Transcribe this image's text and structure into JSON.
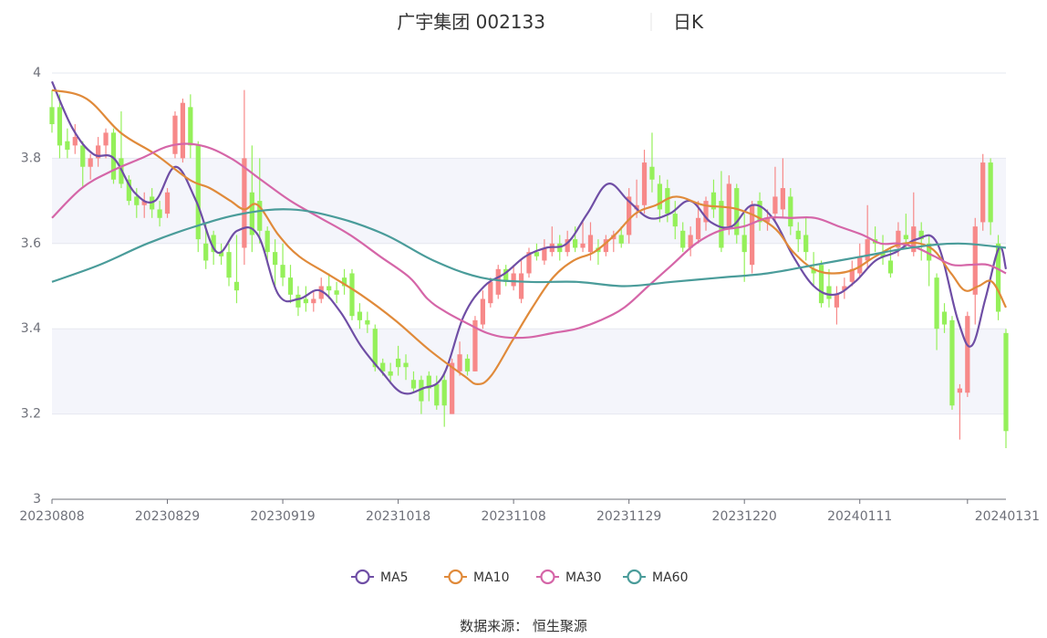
{
  "chart_data": {
    "type": "candlestick",
    "title": "广宇集团 002133",
    "subtitle": "日K",
    "source": "数据来源： 恒生聚源",
    "colors": {
      "up": "#f78989",
      "down": "#95f05a"
    },
    "ylim": [
      3,
      4
    ],
    "yticks": [
      "3",
      "3.2",
      "3.4",
      "3.6",
      "3.8",
      "4"
    ],
    "yticks_values": [
      3,
      3.2,
      3.4,
      3.6,
      3.8,
      4
    ],
    "xticks": [
      "20230808",
      "20230829",
      "20230919",
      "20231018",
      "20231108",
      "20231129",
      "20231220",
      "20240111",
      "20240131"
    ],
    "xtick_index": [
      0,
      15,
      30,
      45,
      60,
      75,
      90,
      105,
      119
    ],
    "candles": [
      [
        3.92,
        3.88,
        3.96,
        3.86
      ],
      [
        3.92,
        3.83,
        3.95,
        3.8
      ],
      [
        3.84,
        3.82,
        3.87,
        3.8
      ],
      [
        3.83,
        3.85,
        3.88,
        3.81
      ],
      [
        3.83,
        3.78,
        3.84,
        3.73
      ],
      [
        3.78,
        3.8,
        3.81,
        3.75
      ],
      [
        3.8,
        3.83,
        3.85,
        3.78
      ],
      [
        3.83,
        3.86,
        3.87,
        3.8
      ],
      [
        3.86,
        3.75,
        3.87,
        3.74
      ],
      [
        3.8,
        3.74,
        3.91,
        3.73
      ],
      [
        3.75,
        3.7,
        3.76,
        3.69
      ],
      [
        3.71,
        3.69,
        3.73,
        3.66
      ],
      [
        3.69,
        3.7,
        3.72,
        3.66
      ],
      [
        3.71,
        3.68,
        3.73,
        3.66
      ],
      [
        3.68,
        3.66,
        3.7,
        3.64
      ],
      [
        3.67,
        3.72,
        3.73,
        3.66
      ],
      [
        3.81,
        3.9,
        3.91,
        3.8
      ],
      [
        3.8,
        3.93,
        3.94,
        3.79
      ],
      [
        3.92,
        3.83,
        3.95,
        3.8
      ],
      [
        3.83,
        3.61,
        3.84,
        3.58
      ],
      [
        3.6,
        3.56,
        3.65,
        3.54
      ],
      [
        3.62,
        3.58,
        3.63,
        3.55
      ],
      [
        3.58,
        3.57,
        3.6,
        3.55
      ],
      [
        3.58,
        3.52,
        3.6,
        3.5
      ],
      [
        3.51,
        3.49,
        3.62,
        3.46
      ],
      [
        3.59,
        3.8,
        3.96,
        3.55
      ],
      [
        3.72,
        3.62,
        3.83,
        3.58
      ],
      [
        3.7,
        3.63,
        3.8,
        3.6
      ],
      [
        3.63,
        3.58,
        3.64,
        3.55
      ],
      [
        3.58,
        3.55,
        3.61,
        3.5
      ],
      [
        3.55,
        3.52,
        3.6,
        3.5
      ],
      [
        3.52,
        3.48,
        3.55,
        3.46
      ],
      [
        3.48,
        3.45,
        3.5,
        3.43
      ],
      [
        3.47,
        3.46,
        3.5,
        3.44
      ],
      [
        3.46,
        3.47,
        3.49,
        3.44
      ],
      [
        3.47,
        3.5,
        3.52,
        3.46
      ],
      [
        3.5,
        3.49,
        3.53,
        3.47
      ],
      [
        3.49,
        3.48,
        3.51,
        3.46
      ],
      [
        3.52,
        3.5,
        3.54,
        3.48
      ],
      [
        3.53,
        3.43,
        3.54,
        3.42
      ],
      [
        3.44,
        3.42,
        3.46,
        3.4
      ],
      [
        3.42,
        3.41,
        3.44,
        3.39
      ],
      [
        3.4,
        3.31,
        3.41,
        3.3
      ],
      [
        3.32,
        3.3,
        3.33,
        3.29
      ],
      [
        3.3,
        3.29,
        3.32,
        3.27
      ],
      [
        3.33,
        3.31,
        3.36,
        3.29
      ],
      [
        3.32,
        3.31,
        3.34,
        3.28
      ],
      [
        3.28,
        3.26,
        3.3,
        3.25
      ],
      [
        3.28,
        3.23,
        3.29,
        3.2
      ],
      [
        3.29,
        3.26,
        3.3,
        3.23
      ],
      [
        3.27,
        3.22,
        3.29,
        3.21
      ],
      [
        3.28,
        3.22,
        3.3,
        3.17
      ],
      [
        3.2,
        3.32,
        3.33,
        3.2
      ],
      [
        3.3,
        3.34,
        3.37,
        3.29
      ],
      [
        3.33,
        3.3,
        3.34,
        3.29
      ],
      [
        3.3,
        3.42,
        3.43,
        3.3
      ],
      [
        3.41,
        3.47,
        3.49,
        3.4
      ],
      [
        3.46,
        3.51,
        3.52,
        3.45
      ],
      [
        3.48,
        3.54,
        3.55,
        3.47
      ],
      [
        3.54,
        3.51,
        3.55,
        3.5
      ],
      [
        3.5,
        3.53,
        3.55,
        3.49
      ],
      [
        3.47,
        3.53,
        3.56,
        3.46
      ],
      [
        3.53,
        3.58,
        3.59,
        3.52
      ],
      [
        3.58,
        3.57,
        3.6,
        3.56
      ],
      [
        3.56,
        3.59,
        3.61,
        3.55
      ],
      [
        3.58,
        3.6,
        3.64,
        3.57
      ],
      [
        3.6,
        3.58,
        3.62,
        3.56
      ],
      [
        3.58,
        3.61,
        3.63,
        3.57
      ],
      [
        3.61,
        3.59,
        3.64,
        3.58
      ],
      [
        3.59,
        3.6,
        3.65,
        3.58
      ],
      [
        3.58,
        3.62,
        3.65,
        3.56
      ],
      [
        3.59,
        3.58,
        3.61,
        3.55
      ],
      [
        3.58,
        3.61,
        3.62,
        3.57
      ],
      [
        3.61,
        3.62,
        3.63,
        3.58
      ],
      [
        3.62,
        3.6,
        3.64,
        3.59
      ],
      [
        3.62,
        3.71,
        3.73,
        3.6
      ],
      [
        3.68,
        3.69,
        3.75,
        3.66
      ],
      [
        3.69,
        3.79,
        3.82,
        3.67
      ],
      [
        3.78,
        3.75,
        3.86,
        3.72
      ],
      [
        3.74,
        3.68,
        3.76,
        3.65
      ],
      [
        3.73,
        3.67,
        3.75,
        3.65
      ],
      [
        3.67,
        3.64,
        3.7,
        3.61
      ],
      [
        3.63,
        3.59,
        3.65,
        3.58
      ],
      [
        3.59,
        3.62,
        3.64,
        3.57
      ],
      [
        3.61,
        3.66,
        3.7,
        3.6
      ],
      [
        3.65,
        3.7,
        3.71,
        3.63
      ],
      [
        3.72,
        3.68,
        3.75,
        3.66
      ],
      [
        3.7,
        3.59,
        3.77,
        3.58
      ],
      [
        3.64,
        3.74,
        3.76,
        3.62
      ],
      [
        3.73,
        3.62,
        3.74,
        3.6
      ],
      [
        3.62,
        3.58,
        3.67,
        3.51
      ],
      [
        3.55,
        3.69,
        3.7,
        3.53
      ],
      [
        3.7,
        3.65,
        3.72,
        3.63
      ],
      [
        3.65,
        3.66,
        3.68,
        3.63
      ],
      [
        3.67,
        3.71,
        3.78,
        3.65
      ],
      [
        3.68,
        3.73,
        3.8,
        3.66
      ],
      [
        3.71,
        3.64,
        3.73,
        3.62
      ],
      [
        3.63,
        3.61,
        3.65,
        3.58
      ],
      [
        3.62,
        3.58,
        3.66,
        3.56
      ],
      [
        3.54,
        3.53,
        3.58,
        3.5
      ],
      [
        3.55,
        3.46,
        3.56,
        3.45
      ],
      [
        3.5,
        3.47,
        3.54,
        3.45
      ],
      [
        3.45,
        3.48,
        3.5,
        3.41
      ],
      [
        3.49,
        3.5,
        3.52,
        3.47
      ],
      [
        3.51,
        3.54,
        3.56,
        3.5
      ],
      [
        3.53,
        3.57,
        3.6,
        3.52
      ],
      [
        3.56,
        3.61,
        3.69,
        3.54
      ],
      [
        3.61,
        3.6,
        3.64,
        3.58
      ],
      [
        3.58,
        3.57,
        3.62,
        3.55
      ],
      [
        3.56,
        3.53,
        3.59,
        3.52
      ],
      [
        3.59,
        3.63,
        3.65,
        3.57
      ],
      [
        3.62,
        3.61,
        3.67,
        3.59
      ],
      [
        3.58,
        3.64,
        3.72,
        3.57
      ],
      [
        3.63,
        3.61,
        3.65,
        3.56
      ],
      [
        3.6,
        3.56,
        3.62,
        3.5
      ],
      [
        3.52,
        3.4,
        3.53,
        3.35
      ],
      [
        3.44,
        3.41,
        3.46,
        3.39
      ],
      [
        3.42,
        3.22,
        3.43,
        3.21
      ],
      [
        3.25,
        3.26,
        3.27,
        3.14
      ],
      [
        3.25,
        3.43,
        3.44,
        3.24
      ],
      [
        3.48,
        3.64,
        3.66,
        3.41
      ],
      [
        3.65,
        3.79,
        3.81,
        3.63
      ],
      [
        3.79,
        3.65,
        3.8,
        3.62
      ],
      [
        3.6,
        3.44,
        3.62,
        3.42
      ],
      [
        3.39,
        3.16,
        3.4,
        3.12
      ]
    ],
    "series": [
      {
        "name": "MA5",
        "color": "#6f4ea5",
        "points": [
          [
            0,
            3.98
          ],
          [
            3,
            3.87
          ],
          [
            6,
            3.81
          ],
          [
            9,
            3.8
          ],
          [
            12,
            3.72
          ],
          [
            15,
            3.7
          ],
          [
            18,
            3.78
          ],
          [
            21,
            3.7
          ],
          [
            24,
            3.58
          ],
          [
            27,
            3.63
          ],
          [
            30,
            3.62
          ],
          [
            33,
            3.48
          ],
          [
            36,
            3.47
          ],
          [
            39,
            3.49
          ],
          [
            42,
            3.44
          ],
          [
            45,
            3.36
          ],
          [
            48,
            3.3
          ],
          [
            51,
            3.25
          ],
          [
            54,
            3.26
          ],
          [
            57,
            3.29
          ],
          [
            60,
            3.43
          ],
          [
            63,
            3.5
          ],
          [
            66,
            3.53
          ],
          [
            69,
            3.57
          ],
          [
            72,
            3.59
          ],
          [
            75,
            3.6
          ],
          [
            78,
            3.67
          ],
          [
            81,
            3.74
          ],
          [
            84,
            3.7
          ],
          [
            87,
            3.66
          ],
          [
            90,
            3.67
          ],
          [
            93,
            3.7
          ],
          [
            96,
            3.65
          ],
          [
            99,
            3.64
          ],
          [
            102,
            3.69
          ],
          [
            105,
            3.66
          ],
          [
            108,
            3.57
          ],
          [
            111,
            3.5
          ],
          [
            114,
            3.48
          ],
          [
            117,
            3.51
          ],
          [
            120,
            3.56
          ],
          [
            123,
            3.58
          ],
          [
            126,
            3.61
          ],
          [
            129,
            3.6
          ],
          [
            132,
            3.42
          ],
          [
            134,
            3.36
          ],
          [
            136,
            3.47
          ],
          [
            138,
            3.59
          ],
          [
            139,
            3.54
          ]
        ]
      },
      {
        "name": "MA10",
        "color": "#e08a3a",
        "points": [
          [
            0,
            3.96
          ],
          [
            5,
            3.94
          ],
          [
            10,
            3.86
          ],
          [
            15,
            3.81
          ],
          [
            20,
            3.75
          ],
          [
            23,
            3.73
          ],
          [
            26,
            3.7
          ],
          [
            28,
            3.68
          ],
          [
            30,
            3.69
          ],
          [
            33,
            3.62
          ],
          [
            36,
            3.57
          ],
          [
            40,
            3.53
          ],
          [
            45,
            3.48
          ],
          [
            50,
            3.42
          ],
          [
            55,
            3.35
          ],
          [
            60,
            3.29
          ],
          [
            62,
            3.27
          ],
          [
            64,
            3.29
          ],
          [
            67,
            3.37
          ],
          [
            70,
            3.45
          ],
          [
            73,
            3.52
          ],
          [
            76,
            3.56
          ],
          [
            79,
            3.58
          ],
          [
            82,
            3.62
          ],
          [
            85,
            3.67
          ],
          [
            88,
            3.69
          ],
          [
            91,
            3.71
          ],
          [
            95,
            3.69
          ],
          [
            100,
            3.68
          ],
          [
            105,
            3.64
          ],
          [
            108,
            3.58
          ],
          [
            111,
            3.54
          ],
          [
            114,
            3.53
          ],
          [
            117,
            3.54
          ],
          [
            120,
            3.57
          ],
          [
            124,
            3.6
          ],
          [
            128,
            3.59
          ],
          [
            131,
            3.53
          ],
          [
            133,
            3.49
          ],
          [
            135,
            3.5
          ],
          [
            137,
            3.51
          ],
          [
            139,
            3.45
          ]
        ]
      },
      {
        "name": "MA30",
        "color": "#d566a8",
        "points": [
          [
            0,
            3.66
          ],
          [
            5,
            3.73
          ],
          [
            10,
            3.77
          ],
          [
            15,
            3.8
          ],
          [
            20,
            3.83
          ],
          [
            25,
            3.83
          ],
          [
            30,
            3.8
          ],
          [
            35,
            3.75
          ],
          [
            40,
            3.7
          ],
          [
            45,
            3.66
          ],
          [
            50,
            3.62
          ],
          [
            55,
            3.57
          ],
          [
            60,
            3.52
          ],
          [
            63,
            3.47
          ],
          [
            66,
            3.44
          ],
          [
            70,
            3.41
          ],
          [
            73,
            3.39
          ],
          [
            76,
            3.38
          ],
          [
            80,
            3.38
          ],
          [
            84,
            3.39
          ],
          [
            88,
            3.4
          ],
          [
            92,
            3.42
          ],
          [
            96,
            3.45
          ],
          [
            100,
            3.5
          ],
          [
            104,
            3.55
          ],
          [
            108,
            3.6
          ],
          [
            112,
            3.63
          ],
          [
            116,
            3.64
          ],
          [
            120,
            3.66
          ],
          [
            124,
            3.66
          ],
          [
            128,
            3.66
          ],
          [
            132,
            3.64
          ],
          [
            136,
            3.62
          ],
          [
            139,
            3.6
          ],
          [
            142,
            3.6
          ],
          [
            145,
            3.59
          ],
          [
            148,
            3.57
          ],
          [
            151,
            3.55
          ],
          [
            154,
            3.55
          ],
          [
            157,
            3.55
          ],
          [
            160,
            3.53
          ]
        ]
      },
      {
        "name": "MA60",
        "color": "#4a9c9a",
        "points": [
          [
            0,
            3.51
          ],
          [
            10,
            3.55
          ],
          [
            20,
            3.6
          ],
          [
            30,
            3.64
          ],
          [
            40,
            3.67
          ],
          [
            50,
            3.68
          ],
          [
            60,
            3.66
          ],
          [
            70,
            3.62
          ],
          [
            80,
            3.56
          ],
          [
            90,
            3.52
          ],
          [
            100,
            3.51
          ],
          [
            110,
            3.51
          ],
          [
            120,
            3.5
          ],
          [
            130,
            3.51
          ],
          [
            140,
            3.52
          ],
          [
            150,
            3.53
          ],
          [
            160,
            3.55
          ],
          [
            170,
            3.57
          ],
          [
            180,
            3.59
          ],
          [
            190,
            3.6
          ],
          [
            200,
            3.59
          ]
        ]
      }
    ],
    "legend": [
      "MA5",
      "MA10",
      "MA30",
      "MA60"
    ]
  }
}
